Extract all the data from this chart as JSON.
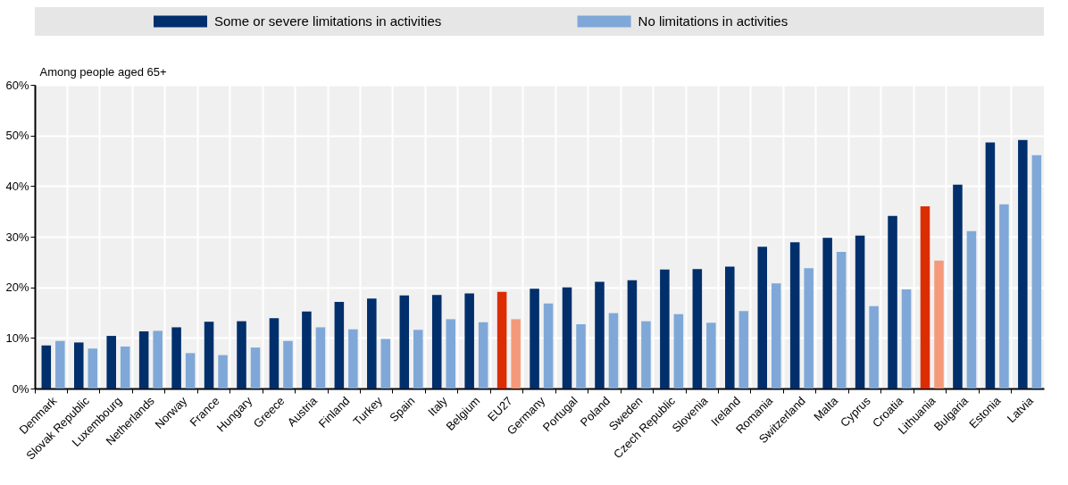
{
  "chart_data": {
    "type": "bar",
    "ylabel": "Among people aged 65+",
    "categories": [
      "Denmark",
      "Slovak Republic",
      "Luxembourg",
      "Netherlands",
      "Norway",
      "France",
      "Hungary",
      "Greece",
      "Austria",
      "Finland",
      "Turkey",
      "Spain",
      "Italy",
      "Belgium",
      "EU27",
      "Germany",
      "Portugal",
      "Poland",
      "Sweden",
      "Czech Republic",
      "Slovenia",
      "Ireland",
      "Romania",
      "Switzerland",
      "Malta",
      "Cyprus",
      "Croatia",
      "Lithuania",
      "Bulgaria",
      "Estonia",
      "Latvia"
    ],
    "series": [
      {
        "name": "Some or severe limitations in activities",
        "color": "#002f6c",
        "colors": [
          "#002f6c",
          "#002f6c",
          "#002f6c",
          "#002f6c",
          "#002f6c",
          "#002f6c",
          "#002f6c",
          "#002f6c",
          "#002f6c",
          "#002f6c",
          "#002f6c",
          "#002f6c",
          "#002f6c",
          "#002f6c",
          "#dc2d00",
          "#002f6c",
          "#002f6c",
          "#002f6c",
          "#002f6c",
          "#002f6c",
          "#002f6c",
          "#002f6c",
          "#002f6c",
          "#002f6c",
          "#002f6c",
          "#002f6c",
          "#002f6c",
          "#dc2d00",
          "#002f6c",
          "#002f6c",
          "#002f6c"
        ],
        "values": [
          8.5,
          9.1,
          10.4,
          11.3,
          12.1,
          13.2,
          13.3,
          13.9,
          15.2,
          17.1,
          17.8,
          18.4,
          18.5,
          18.8,
          19.1,
          19.7,
          20.0,
          21.1,
          21.4,
          23.5,
          23.6,
          24.1,
          28.0,
          28.9,
          29.8,
          30.2,
          34.1,
          36.0,
          40.3,
          48.6,
          49.1
        ]
      },
      {
        "name": "No limitations in activities",
        "color": "#7fa8d8",
        "colors": [
          "#7fa8d8",
          "#7fa8d8",
          "#7fa8d8",
          "#7fa8d8",
          "#7fa8d8",
          "#7fa8d8",
          "#7fa8d8",
          "#7fa8d8",
          "#7fa8d8",
          "#7fa8d8",
          "#7fa8d8",
          "#7fa8d8",
          "#7fa8d8",
          "#7fa8d8",
          "#f4997a",
          "#7fa8d8",
          "#7fa8d8",
          "#7fa8d8",
          "#7fa8d8",
          "#7fa8d8",
          "#7fa8d8",
          "#7fa8d8",
          "#7fa8d8",
          "#7fa8d8",
          "#7fa8d8",
          "#7fa8d8",
          "#7fa8d8",
          "#f4997a",
          "#7fa8d8",
          "#7fa8d8",
          "#7fa8d8"
        ],
        "values": [
          9.4,
          7.9,
          8.3,
          11.4,
          7.0,
          6.6,
          8.1,
          9.4,
          12.1,
          11.7,
          9.8,
          11.6,
          13.7,
          13.1,
          13.7,
          16.8,
          12.7,
          14.9,
          13.3,
          14.7,
          13.0,
          15.3,
          20.8,
          23.8,
          27.0,
          16.3,
          19.6,
          25.3,
          31.1,
          36.4,
          46.1
        ]
      }
    ],
    "ylim": [
      0,
      60
    ],
    "yticks": [
      {
        "value": 0,
        "label": "0%"
      },
      {
        "value": 10,
        "label": "10%"
      },
      {
        "value": 20,
        "label": "20%"
      },
      {
        "value": 30,
        "label": "30%"
      },
      {
        "value": 40,
        "label": "40%"
      },
      {
        "value": 50,
        "label": "50%"
      },
      {
        "value": 60,
        "label": "60%"
      }
    ],
    "grid": true,
    "legend": "top"
  }
}
